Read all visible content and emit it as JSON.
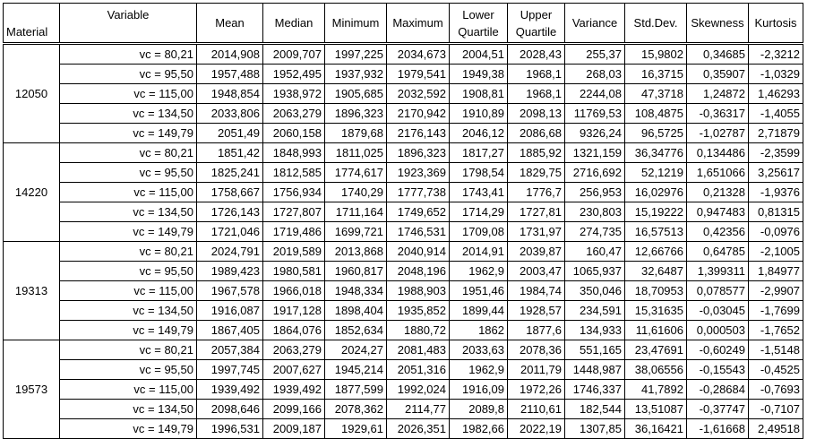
{
  "headers": {
    "material": "Material",
    "variable": "Variable",
    "mean": "Mean",
    "median": "Median",
    "minimum": "Minimum",
    "maximum": "Maximum",
    "lower_quartile": [
      "Lower",
      "Quartile"
    ],
    "upper_quartile": [
      "Upper",
      "Quartile"
    ],
    "variance": "Variance",
    "std_dev": "Std.Dev.",
    "skewness": "Skewness",
    "kurtosis": "Kurtosis"
  },
  "groups": [
    {
      "material": "12050",
      "rows": [
        [
          "vc = 80,21",
          "2014,908",
          "2009,707",
          "1997,225",
          "2034,673",
          "2004,51",
          "2028,43",
          "255,37",
          "15,9802",
          "0,34685",
          "-2,3212"
        ],
        [
          "vc = 95,50",
          "1957,488",
          "1952,495",
          "1937,932",
          "1979,541",
          "1949,38",
          "1968,1",
          "268,03",
          "16,3715",
          "0,35907",
          "-1,0329"
        ],
        [
          "vc = 115,00",
          "1948,854",
          "1938,972",
          "1905,685",
          "2032,592",
          "1908,81",
          "1968,1",
          "2244,08",
          "47,3718",
          "1,24872",
          "1,46293"
        ],
        [
          "vc = 134,50",
          "2033,806",
          "2063,279",
          "1896,323",
          "2170,942",
          "1910,89",
          "2098,13",
          "11769,53",
          "108,4875",
          "-0,36317",
          "-1,4055"
        ],
        [
          "vc = 149,79",
          "2051,49",
          "2060,158",
          "1879,68",
          "2176,143",
          "2046,12",
          "2086,68",
          "9326,24",
          "96,5725",
          "-1,02787",
          "2,71879"
        ]
      ]
    },
    {
      "material": "14220",
      "rows": [
        [
          "vc = 80,21",
          "1851,42",
          "1848,993",
          "1811,025",
          "1896,323",
          "1817,27",
          "1885,92",
          "1321,159",
          "36,34776",
          "0,134486",
          "-2,3599"
        ],
        [
          "vc = 95,50",
          "1825,241",
          "1812,585",
          "1774,617",
          "1923,369",
          "1798,54",
          "1829,75",
          "2716,692",
          "52,1219",
          "1,651066",
          "3,25617"
        ],
        [
          "vc = 115,00",
          "1758,667",
          "1756,934",
          "1740,29",
          "1777,738",
          "1743,41",
          "1776,7",
          "256,953",
          "16,02976",
          "0,21328",
          "-1,9376"
        ],
        [
          "vc = 134,50",
          "1726,143",
          "1727,807",
          "1711,164",
          "1749,652",
          "1714,29",
          "1727,81",
          "230,803",
          "15,19222",
          "0,947483",
          "0,81315"
        ],
        [
          "vc = 149,79",
          "1721,046",
          "1719,486",
          "1699,721",
          "1746,531",
          "1709,08",
          "1731,97",
          "274,735",
          "16,57513",
          "0,42356",
          "-0,0976"
        ]
      ]
    },
    {
      "material": "19313",
      "rows": [
        [
          "vc = 80,21",
          "2024,791",
          "2019,589",
          "2013,868",
          "2040,914",
          "2014,91",
          "2039,87",
          "160,47",
          "12,66766",
          "0,64785",
          "-2,1005"
        ],
        [
          "vc = 95,50",
          "1989,423",
          "1980,581",
          "1960,817",
          "2048,196",
          "1962,9",
          "2003,47",
          "1065,937",
          "32,6487",
          "1,399311",
          "1,84977"
        ],
        [
          "vc = 115,00",
          "1967,578",
          "1966,018",
          "1948,334",
          "1988,903",
          "1951,46",
          "1984,74",
          "350,046",
          "18,70953",
          "0,078577",
          "-2,9907"
        ],
        [
          "vc = 134,50",
          "1916,087",
          "1917,128",
          "1898,404",
          "1935,852",
          "1899,44",
          "1928,57",
          "234,591",
          "15,31635",
          "-0,03045",
          "-1,7699"
        ],
        [
          "vc = 149,79",
          "1867,405",
          "1864,076",
          "1852,634",
          "1880,72",
          "1862",
          "1877,6",
          "134,933",
          "11,61606",
          "0,000503",
          "-1,7652"
        ]
      ]
    },
    {
      "material": "19573",
      "rows": [
        [
          "vc = 80,21",
          "2057,384",
          "2063,279",
          "2024,27",
          "2081,483",
          "2033,63",
          "2078,36",
          "551,165",
          "23,47691",
          "-0,60249",
          "-1,5148"
        ],
        [
          "vc = 95,50",
          "1997,745",
          "2007,627",
          "1945,214",
          "2051,316",
          "1962,9",
          "2011,79",
          "1448,987",
          "38,06556",
          "-0,15543",
          "-0,4525"
        ],
        [
          "vc = 115,00",
          "1939,492",
          "1939,492",
          "1877,599",
          "1992,024",
          "1916,09",
          "1972,26",
          "1746,337",
          "41,7892",
          "-0,28684",
          "-0,7693"
        ],
        [
          "vc = 134,50",
          "2098,646",
          "2099,166",
          "2078,362",
          "2114,77",
          "2089,8",
          "2110,61",
          "182,544",
          "13,51087",
          "-0,37747",
          "-0,7107"
        ],
        [
          "vc = 149,79",
          "1996,531",
          "2009,187",
          "1929,61",
          "2026,351",
          "1982,66",
          "2022,19",
          "1307,85",
          "36,16421",
          "-1,61668",
          "2,49518"
        ]
      ]
    }
  ]
}
